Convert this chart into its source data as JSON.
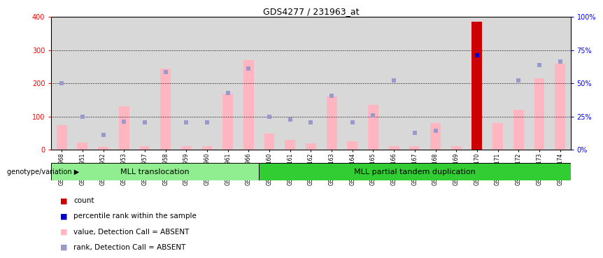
{
  "title": "GDS4277 / 231963_at",
  "samples": [
    "GSM304968",
    "GSM307951",
    "GSM307952",
    "GSM307953",
    "GSM307957",
    "GSM307958",
    "GSM307959",
    "GSM307960",
    "GSM307961",
    "GSM307966",
    "GSM366160",
    "GSM366161",
    "GSM366162",
    "GSM366163",
    "GSM366164",
    "GSM366165",
    "GSM366166",
    "GSM366167",
    "GSM366168",
    "GSM366169",
    "GSM366170",
    "GSM366171",
    "GSM366172",
    "GSM366173",
    "GSM366174"
  ],
  "pink_bars": [
    75,
    22,
    8,
    130,
    12,
    245,
    12,
    12,
    168,
    270,
    48,
    30,
    20,
    160,
    25,
    135,
    12,
    12,
    80,
    10,
    385,
    80,
    120,
    215,
    260
  ],
  "blue_squares": [
    200,
    100,
    45,
    85,
    82,
    235,
    82,
    82,
    170,
    245,
    100,
    90,
    82,
    162,
    82,
    104,
    208,
    50,
    57,
    null,
    285,
    null,
    208,
    255,
    265
  ],
  "red_bar_index": 20,
  "red_bar_value": 385,
  "blue_dot_index": 20,
  "blue_dot_value": 285,
  "group1_count": 10,
  "group1_label": "MLL translocation",
  "group2_label": "MLL partial tandem duplication",
  "ylim_left": [
    0,
    400
  ],
  "ylim_right": [
    0,
    100
  ],
  "yticks_left": [
    0,
    100,
    200,
    300,
    400
  ],
  "yticks_right": [
    0,
    25,
    50,
    75,
    100
  ],
  "ytick_labels_right": [
    "0%",
    "25%",
    "50%",
    "75%",
    "100%"
  ],
  "bg_color": "#d8d8d8",
  "pink_color": "#ffb6c1",
  "blue_sq_color": "#9999cc",
  "red_color": "#cc0000",
  "blue_dot_color": "#0000cc",
  "legend_entries": [
    [
      "count",
      "#cc0000",
      "s"
    ],
    [
      "percentile rank within the sample",
      "#0000cc",
      "s"
    ],
    [
      "value, Detection Call = ABSENT",
      "#ffb6c1",
      "s"
    ],
    [
      "rank, Detection Call = ABSENT",
      "#9999cc",
      "s"
    ]
  ],
  "genotype_label": "genotype/variation"
}
